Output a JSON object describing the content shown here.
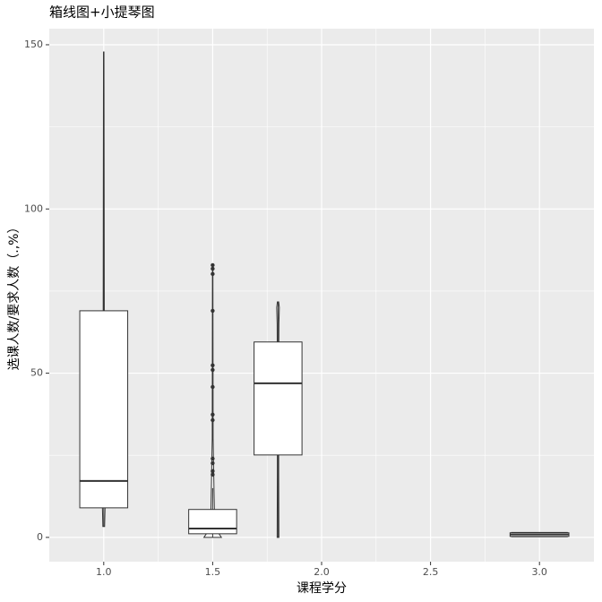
{
  "chart_data": {
    "type": "boxplot",
    "title": "箱线图+小提琴图",
    "x_label": "课程学分",
    "y_label": "选课人数/要求人数（.,%）",
    "xlim": [
      0.75,
      3.25
    ],
    "ylim": [
      -7.4,
      154.9
    ],
    "xticks": [
      {
        "value": 1,
        "label": "1.0"
      },
      {
        "value": 1.5,
        "label": "1.5"
      },
      {
        "value": 2,
        "label": "2.0"
      },
      {
        "value": 2.5,
        "label": "2.5"
      },
      {
        "value": 3,
        "label": "3.0"
      }
    ],
    "yticks": [
      0,
      50,
      100,
      150
    ],
    "x_minor_ticks": [
      1.25,
      1.75,
      2.25,
      2.75
    ],
    "y_minor_ticks": [
      25,
      75,
      125
    ],
    "grid": true,
    "groups": [
      {
        "x": 1.0,
        "width": 0.22,
        "lower_whisker": 3.3,
        "q1": 9,
        "median": 17.2,
        "q3": 69,
        "upper_whisker": 147.8,
        "outliers": [],
        "violin": {
          "y": [
            3.3,
            9,
            40,
            100,
            147.8
          ],
          "half_width": [
            0.004,
            0.006,
            0.003,
            0.002,
            0.001
          ]
        }
      },
      {
        "x": 1.5,
        "width": 0.22,
        "lower_whisker": 0,
        "q1": 1.1,
        "median": 2.7,
        "q3": 8.5,
        "upper_whisker": 15,
        "outliers": [
          19.1,
          20.2,
          22.6,
          24,
          35.7,
          37.4,
          45.8,
          51,
          52.4,
          69,
          80.2,
          81.8,
          82.9
        ],
        "violin": {
          "y": [
            0,
            1,
            3,
            8,
            15,
            30,
            82.9
          ],
          "half_width": [
            0.04,
            0.03,
            0.015,
            0.008,
            0.006,
            0.002,
            0.001
          ]
        }
      },
      {
        "x": 1.8,
        "width": 0.22,
        "lower_whisker": 0,
        "q1": 25.1,
        "median": 46.9,
        "q3": 59.5,
        "upper_whisker": 71.7,
        "outliers": [],
        "violin": {
          "y": [
            0,
            20,
            50,
            65,
            70,
            71.7
          ],
          "half_width": [
            0.004,
            0.003,
            0.003,
            0.004,
            0.006,
            0.003
          ]
        }
      },
      {
        "x": 3.0,
        "width": 0.27,
        "lower_whisker": 0.2,
        "q1": 0.3,
        "median": 0.9,
        "q3": 1.4,
        "upper_whisker": 1.5,
        "outliers": [],
        "violin": {
          "y": [
            0.2,
            0.9,
            1.5
          ],
          "half_width": [
            0.13,
            0.03,
            0.13
          ]
        }
      }
    ],
    "panel_color": "#ebebeb",
    "grid_color": "#ffffff",
    "box_fill": "#ffffff",
    "line_color": "#333333"
  }
}
